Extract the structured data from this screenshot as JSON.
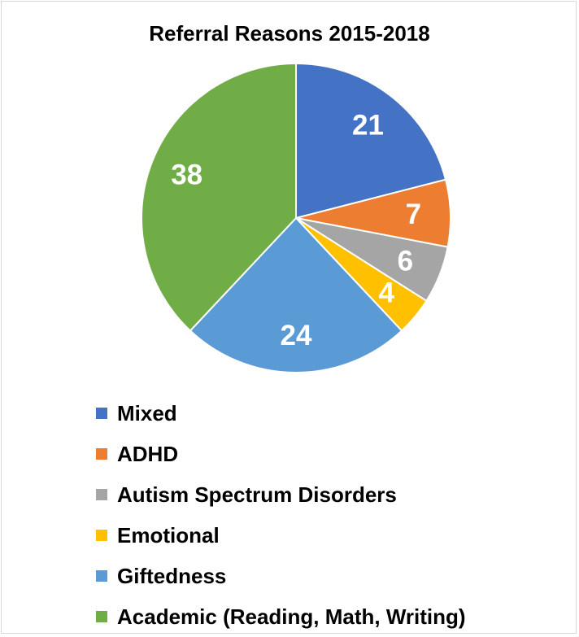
{
  "chart_data": {
    "type": "pie",
    "title": "Referral Reasons 2015-2018",
    "slices": [
      {
        "label": "Mixed",
        "value": 21,
        "color": "#4472C4"
      },
      {
        "label": "ADHD",
        "value": 7,
        "color": "#ED7D31"
      },
      {
        "label": "Autism Spectrum Disorders",
        "value": 6,
        "color": "#A5A5A5"
      },
      {
        "label": "Emotional",
        "value": 4,
        "color": "#FFC000"
      },
      {
        "label": "Giftedness",
        "value": 24,
        "color": "#5B9BD5"
      },
      {
        "label": "Academic (Reading, Math, Writing)",
        "value": 38,
        "color": "#70AD47"
      }
    ],
    "start_angle": "12 o'clock",
    "direction": "clockwise",
    "data_labels": "values shown inside slices",
    "legend_position": "bottom"
  }
}
